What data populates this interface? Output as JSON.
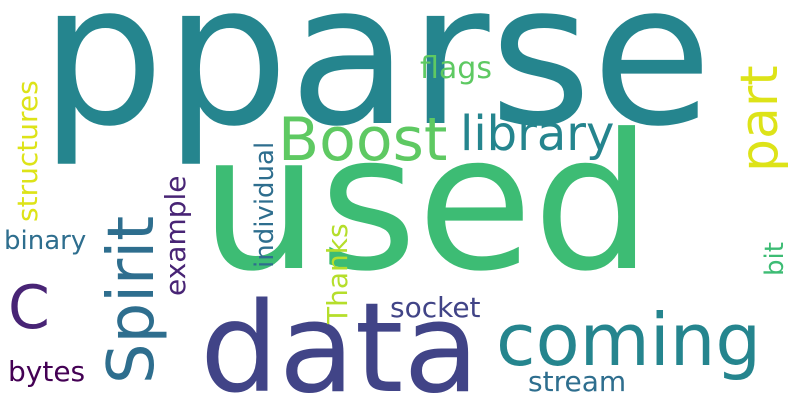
{
  "words": [
    {
      "text": "pparse",
      "color": "#25858e",
      "rotated": false
    },
    {
      "text": "used",
      "color": "#3dbc74",
      "rotated": false
    },
    {
      "text": "data",
      "color": "#414487",
      "rotated": false
    },
    {
      "text": "Boost",
      "color": "#5ec962",
      "rotated": false
    },
    {
      "text": "library",
      "color": "#25858e",
      "rotated": false
    },
    {
      "text": "part",
      "color": "#dde318",
      "rotated": true
    },
    {
      "text": "coming",
      "color": "#25858e",
      "rotated": false
    },
    {
      "text": "Spirit",
      "color": "#2e6e8e",
      "rotated": true
    },
    {
      "text": "C",
      "color": "#482475",
      "rotated": false
    },
    {
      "text": "flags",
      "color": "#5ec962",
      "rotated": false
    },
    {
      "text": "structures",
      "color": "#dde318",
      "rotated": true
    },
    {
      "text": "binary",
      "color": "#2e6e8e",
      "rotated": false
    },
    {
      "text": "example",
      "color": "#482475",
      "rotated": true
    },
    {
      "text": "individual",
      "color": "#2e6e8e",
      "rotated": true
    },
    {
      "text": "Thanks",
      "color": "#b5de2b",
      "rotated": true
    },
    {
      "text": "socket",
      "color": "#414487",
      "rotated": false
    },
    {
      "text": "bytes",
      "color": "#440154",
      "rotated": false
    },
    {
      "text": "stream",
      "color": "#2e6e8e",
      "rotated": false
    },
    {
      "text": "bit",
      "color": "#3dbc74",
      "rotated": true
    }
  ]
}
